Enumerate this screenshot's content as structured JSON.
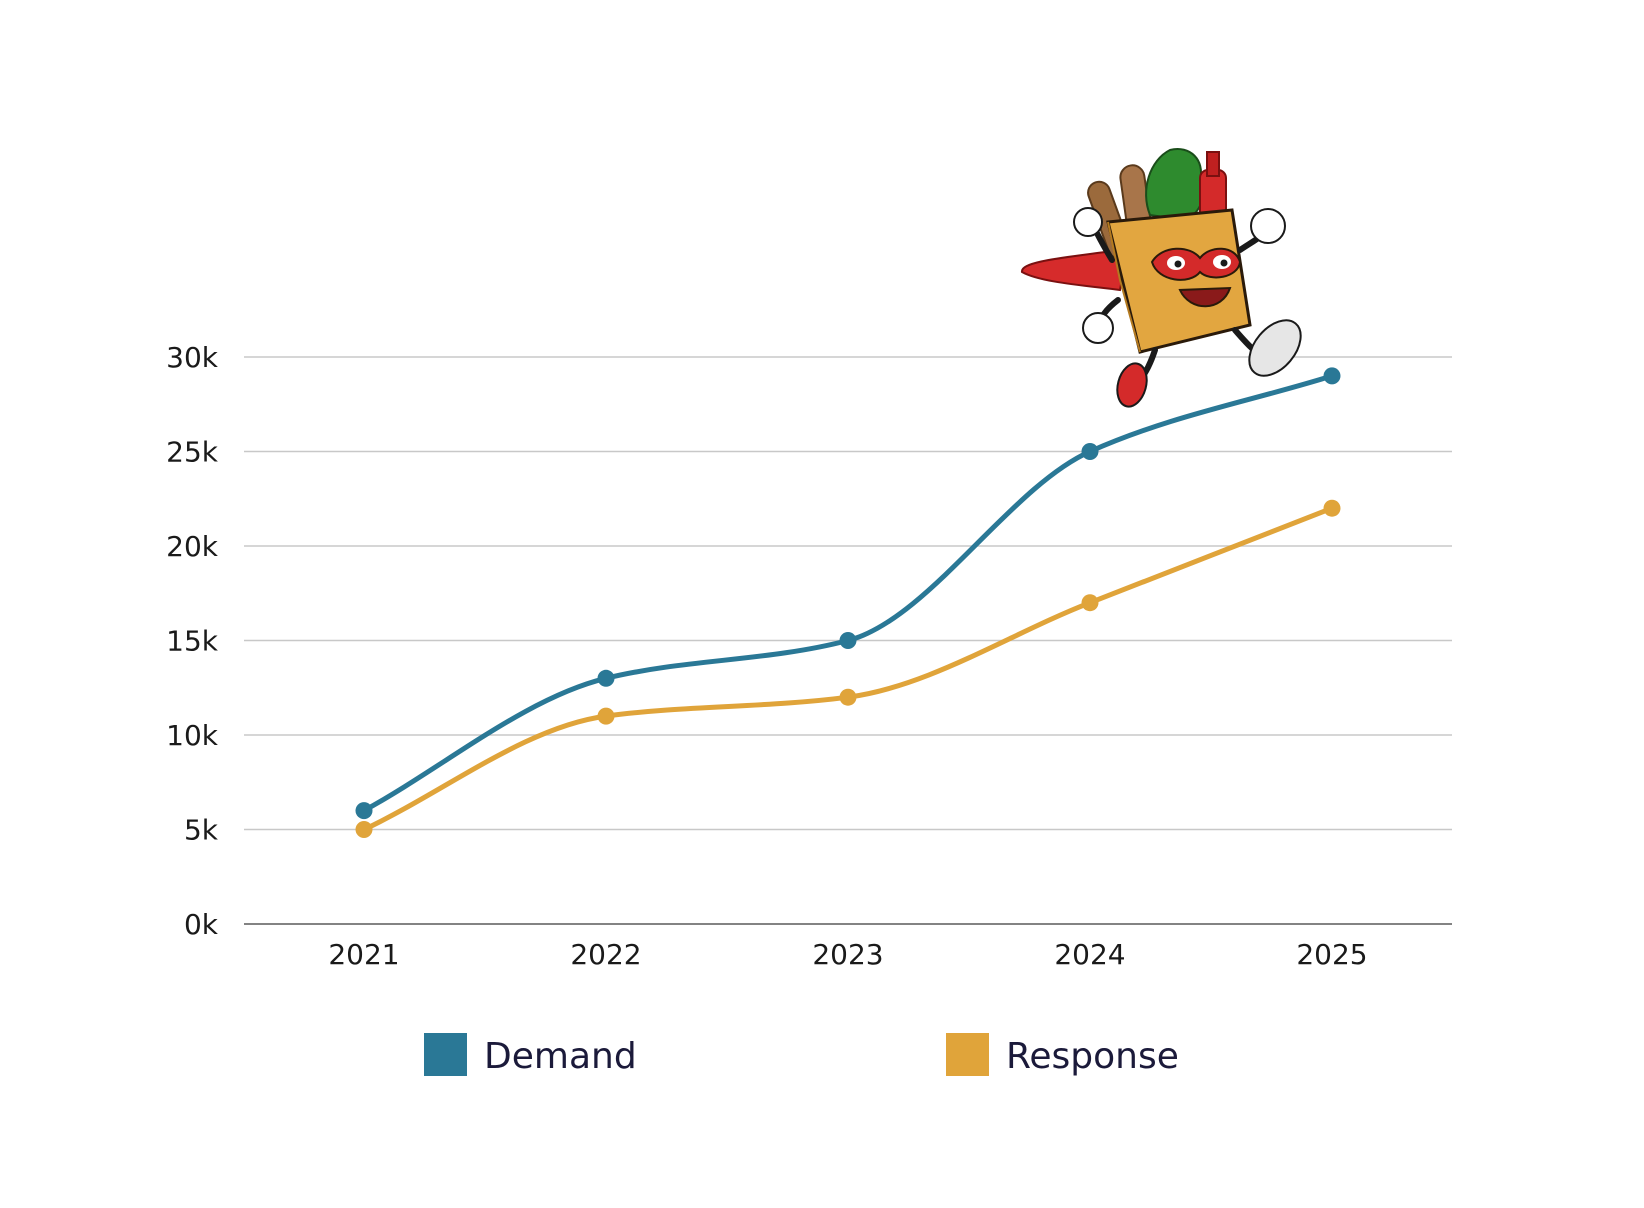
{
  "chart_data": {
    "type": "line",
    "title": "",
    "xlabel": "",
    "ylabel": "",
    "categories": [
      "2021",
      "2022",
      "2023",
      "2024",
      "2025"
    ],
    "y_ticks": [
      0,
      5000,
      10000,
      15000,
      20000,
      25000,
      30000
    ],
    "y_tick_labels": [
      "0k",
      "5k",
      "10k",
      "15k",
      "20k",
      "25k",
      "30k"
    ],
    "ylim": [
      0,
      30000
    ],
    "grid": true,
    "smooth": true,
    "legend_position": "bottom",
    "series": [
      {
        "name": "Demand",
        "color": "#2a7896",
        "values": [
          6000,
          13000,
          15000,
          25000,
          29000
        ]
      },
      {
        "name": "Response",
        "color": "#e0a43a",
        "values": [
          5000,
          11000,
          12000,
          17000,
          22000
        ]
      }
    ]
  },
  "mascot": {
    "icon": "grocery-bag-superhero-mascot-icon"
  }
}
